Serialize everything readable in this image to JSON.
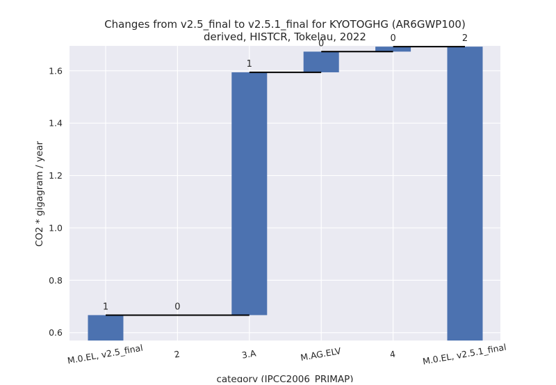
{
  "chart_data": {
    "type": "bar",
    "title": "Changes from v2.5_final to v2.5.1_final for KYOTOGHG (AR6GWP100)",
    "subtitle": "derived, HISTCR, Tokelau, 2022",
    "xlabel": "category (IPCC2006_PRIMAP)",
    "ylabel": "CO2 * gigagram / year",
    "ylim": [
      0.57,
      1.695
    ],
    "yticks": [
      "0.6",
      "0.8",
      "1.0",
      "1.2",
      "1.4",
      "1.6"
    ],
    "ytick_values": [
      0.6,
      0.8,
      1.0,
      1.2,
      1.4,
      1.6
    ],
    "categories": [
      "M.0.EL, v2.5_final",
      "2",
      "3.A",
      "M.AG.ELV",
      "4",
      "M.0.EL, v2.5.1_final"
    ],
    "bars": [
      {
        "bottom": 0.57,
        "top": 0.667,
        "label": "1"
      },
      {
        "bottom": 0.667,
        "top": 0.667,
        "label": "0"
      },
      {
        "bottom": 0.667,
        "top": 1.594,
        "label": "1"
      },
      {
        "bottom": 1.594,
        "top": 1.673,
        "label": "0"
      },
      {
        "bottom": 1.673,
        "top": 1.692,
        "label": "0"
      },
      {
        "bottom": 0.57,
        "top": 1.692,
        "label": "2"
      }
    ],
    "connectors": [
      {
        "from": 0,
        "to": 2,
        "value": 0.667
      },
      {
        "from": 2,
        "to": 3,
        "value": 1.594
      },
      {
        "from": 3,
        "to": 4,
        "value": 1.673
      },
      {
        "from": 4,
        "to": 5,
        "value": 1.692
      }
    ],
    "grid": true,
    "bar_color": "#4c72b0",
    "background_color": "#eaeaf2"
  }
}
